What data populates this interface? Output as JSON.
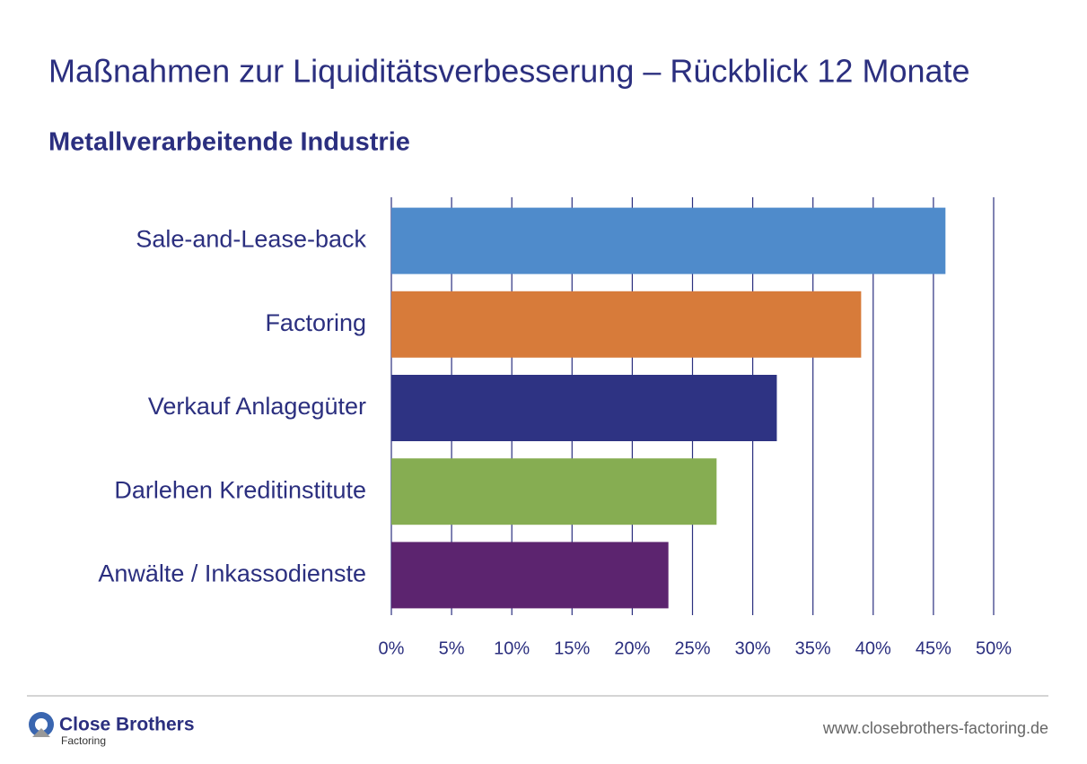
{
  "chart_data": {
    "type": "barh",
    "title": "Maßnahmen zur Liquiditätsverbesserung – Rückblick 12 Monate",
    "subtitle": "Metallverarbeitende Industrie",
    "categories": [
      "Sale-and-Lease-back",
      "Factoring",
      "Verkauf Anlagegüter",
      "Darlehen Kreditinstitute",
      "Anwälte / Inkassodienste"
    ],
    "values": [
      46,
      39,
      32,
      27,
      23
    ],
    "colors": [
      "#4f8bcb",
      "#d77b3a",
      "#2e3383",
      "#86ad52",
      "#5c246f"
    ],
    "xlim": [
      0,
      50
    ],
    "xticks": [
      {
        "value": 0,
        "label": "0%"
      },
      {
        "value": 5,
        "label": "5%"
      },
      {
        "value": 10,
        "label": "10%"
      },
      {
        "value": 15,
        "label": "15%"
      },
      {
        "value": 20,
        "label": "20%"
      },
      {
        "value": 25,
        "label": "25%"
      },
      {
        "value": 30,
        "label": "30%"
      },
      {
        "value": 35,
        "label": "35%"
      },
      {
        "value": 40,
        "label": "40%"
      },
      {
        "value": 45,
        "label": "45%"
      },
      {
        "value": 50,
        "label": "50%"
      }
    ],
    "grid": true
  },
  "footer": {
    "brand": "Close Brothers",
    "brand_sub": "Factoring",
    "url": "www.closebrothers-factoring.de"
  }
}
